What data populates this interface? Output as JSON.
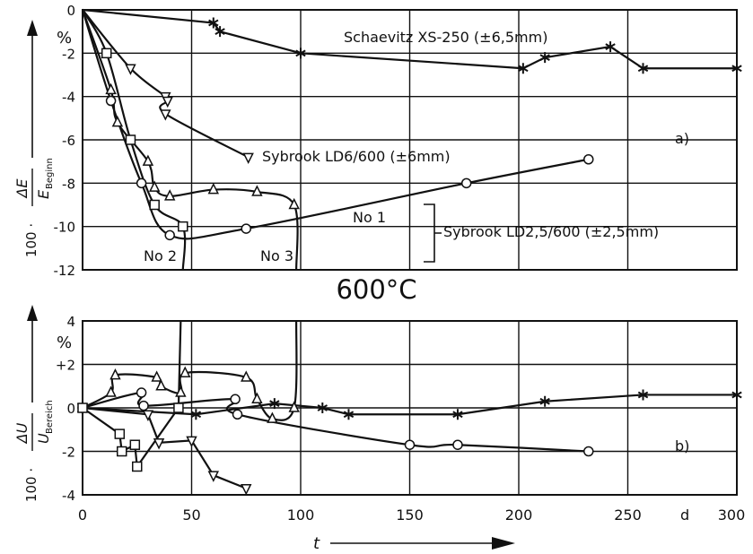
{
  "mid_title": "600°C",
  "x_axis": {
    "label": "t",
    "unit": "d",
    "tick_labels": [
      "0",
      "50",
      "100",
      "150",
      "200",
      "250",
      "300"
    ]
  },
  "chart_data": [
    {
      "type": "line",
      "panel": "a)",
      "ylabel_prefix": "100 ·",
      "ylabel_num": "ΔE",
      "ylabel_den": "E",
      "ylabel_den_sub": "Beginn",
      "yunit": "%",
      "xlim": [
        0,
        300
      ],
      "ylim": [
        -12,
        0
      ],
      "yticks": [
        0,
        -2,
        -4,
        -6,
        -8,
        -10,
        -12
      ],
      "ytick_labels": [
        "0",
        "-2",
        "-4",
        "-6",
        "-8",
        "-10",
        "-12"
      ],
      "grid": true,
      "annotations": {
        "schaevitz": "Schaevitz XS-250 (±6,5mm)",
        "ld6": "Sybrook LD6/600 (±6mm)",
        "no1": "No 1",
        "ld25": "Sybrook LD2,5/600 (±2,5mm)",
        "no2": "No 2",
        "no3": "No 3"
      },
      "series": [
        {
          "marker": "asterisk",
          "smooth": false,
          "x": [
            0,
            60,
            63,
            100,
            202,
            212,
            242,
            257,
            300
          ],
          "y": [
            0,
            -0.6,
            -1.0,
            -2.0,
            -2.7,
            -2.2,
            -1.7,
            -2.7,
            -2.7
          ]
        },
        {
          "marker": "tri-down",
          "smooth": true,
          "x": [
            0,
            22,
            38,
            39,
            38,
            76
          ],
          "y": [
            0,
            -2.7,
            -4.0,
            -4.2,
            -4.8,
            -6.8
          ]
        },
        {
          "marker": "circle",
          "smooth": true,
          "x": [
            0,
            13,
            27,
            40,
            75,
            176,
            232
          ],
          "y": [
            0,
            -4.2,
            -8.0,
            -10.4,
            -10.1,
            -8.0,
            -6.9
          ]
        },
        {
          "marker": "triangle",
          "smooth": true,
          "x": [
            0,
            13,
            16,
            30,
            33,
            40,
            60,
            80,
            97,
            98
          ],
          "y": [
            0,
            -3.7,
            -5.2,
            -7.0,
            -8.2,
            -8.6,
            -8.3,
            -8.4,
            -9.0,
            -12
          ]
        },
        {
          "marker": "square",
          "smooth": true,
          "x": [
            0,
            11,
            22,
            33,
            46,
            46
          ],
          "y": [
            0,
            -2.0,
            -6.0,
            -9.0,
            -10.0,
            -12
          ]
        }
      ]
    },
    {
      "type": "line",
      "panel": "b)",
      "ylabel_prefix": "100 ·",
      "ylabel_num": "ΔU",
      "ylabel_den": "U",
      "ylabel_den_sub": "Bereich",
      "yunit": "%",
      "xlim": [
        0,
        300
      ],
      "ylim": [
        -4,
        4
      ],
      "yticks": [
        4,
        2,
        0,
        -2,
        -4
      ],
      "ytick_labels": [
        "4",
        "+2",
        "0",
        "-2",
        "-4"
      ],
      "grid": true,
      "series": [
        {
          "marker": "asterisk",
          "smooth": false,
          "x": [
            0,
            52,
            88,
            110,
            122,
            172,
            212,
            257,
            300
          ],
          "y": [
            0,
            -0.3,
            0.2,
            0,
            -0.3,
            -0.3,
            0.3,
            0.6,
            0.6
          ]
        },
        {
          "marker": "tri-down",
          "smooth": false,
          "x": [
            0,
            30,
            35,
            50,
            60,
            75
          ],
          "y": [
            0,
            -0.3,
            -1.6,
            -1.5,
            -3.1,
            -3.7
          ]
        },
        {
          "marker": "circle",
          "smooth": true,
          "x": [
            0,
            27,
            28,
            70,
            71,
            150,
            172,
            232
          ],
          "y": [
            0,
            0.7,
            0.1,
            0.4,
            -0.3,
            -1.7,
            -1.7,
            -2.0
          ]
        },
        {
          "marker": "triangle",
          "smooth": true,
          "x": [
            0,
            13,
            15,
            34,
            36,
            45,
            47,
            75,
            80,
            87,
            97,
            98
          ],
          "y": [
            0,
            0.7,
            1.5,
            1.4,
            1.0,
            0.7,
            1.6,
            1.4,
            0.4,
            -0.5,
            0,
            4
          ]
        },
        {
          "marker": "square",
          "smooth": false,
          "x": [
            0,
            17,
            18,
            24,
            25,
            44,
            45
          ],
          "y": [
            0,
            -1.2,
            -2.0,
            -1.7,
            -2.7,
            0,
            4
          ]
        }
      ]
    }
  ]
}
